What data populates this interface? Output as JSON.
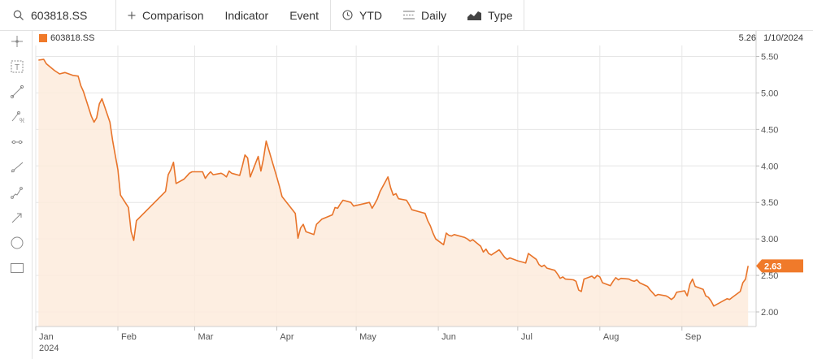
{
  "toolbar": {
    "symbol": "603818.SS",
    "comparison_label": "Comparison",
    "indicator_label": "Indicator",
    "event_label": "Event",
    "range_label": "YTD",
    "interval_label": "Daily",
    "type_label": "Type"
  },
  "legend": {
    "symbol": "603818.SS",
    "color": "#f07a2a"
  },
  "readout": {
    "price": "5.26",
    "date": "1/10/2024"
  },
  "last_price_tag": "2.63",
  "colors": {
    "line": "#e8742a",
    "fill": "#fdebdc",
    "tag": "#f07a2a",
    "grid": "#e6e6e6"
  },
  "tools": [
    "crosshair-icon",
    "text-icon",
    "line-icon",
    "fib-icon",
    "ray-icon",
    "trend-icon",
    "channel-icon",
    "arrow-icon",
    "circle-icon",
    "rectangle-icon"
  ],
  "chart_data": {
    "type": "area",
    "title": "",
    "xlabel": "",
    "ylabel": "",
    "series": [
      {
        "name": "603818.SS",
        "points": [
          [
            "2024-01-02",
            5.45
          ],
          [
            "2024-01-04",
            5.46
          ],
          [
            "2024-01-05",
            5.4
          ],
          [
            "2024-01-08",
            5.31
          ],
          [
            "2024-01-10",
            5.26
          ],
          [
            "2024-01-12",
            5.28
          ],
          [
            "2024-01-15",
            5.24
          ],
          [
            "2024-01-17",
            5.23
          ],
          [
            "2024-01-18",
            5.1
          ],
          [
            "2024-01-19",
            5.02
          ],
          [
            "2024-01-22",
            4.68
          ],
          [
            "2024-01-23",
            4.6
          ],
          [
            "2024-01-24",
            4.66
          ],
          [
            "2024-01-25",
            4.85
          ],
          [
            "2024-01-26",
            4.92
          ],
          [
            "2024-01-29",
            4.6
          ],
          [
            "2024-01-30",
            4.35
          ],
          [
            "2024-01-31",
            4.15
          ],
          [
            "2024-02-01",
            3.95
          ],
          [
            "2024-02-02",
            3.6
          ],
          [
            "2024-02-05",
            3.43
          ],
          [
            "2024-02-06",
            3.1
          ],
          [
            "2024-02-07",
            2.98
          ],
          [
            "2024-02-08",
            3.25
          ],
          [
            "2024-02-19",
            3.65
          ],
          [
            "2024-02-20",
            3.88
          ],
          [
            "2024-02-21",
            3.95
          ],
          [
            "2024-02-22",
            4.05
          ],
          [
            "2024-02-23",
            3.76
          ],
          [
            "2024-02-26",
            3.82
          ],
          [
            "2024-02-27",
            3.86
          ],
          [
            "2024-02-28",
            3.9
          ],
          [
            "2024-02-29",
            3.92
          ],
          [
            "2024-03-04",
            3.92
          ],
          [
            "2024-03-05",
            3.83
          ],
          [
            "2024-03-06",
            3.88
          ],
          [
            "2024-03-07",
            3.92
          ],
          [
            "2024-03-08",
            3.88
          ],
          [
            "2024-03-11",
            3.9
          ],
          [
            "2024-03-12",
            3.88
          ],
          [
            "2024-03-13",
            3.85
          ],
          [
            "2024-03-14",
            3.93
          ],
          [
            "2024-03-15",
            3.9
          ],
          [
            "2024-03-18",
            3.87
          ],
          [
            "2024-03-19",
            4.0
          ],
          [
            "2024-03-20",
            4.15
          ],
          [
            "2024-03-21",
            4.11
          ],
          [
            "2024-03-22",
            3.85
          ],
          [
            "2024-03-25",
            4.13
          ],
          [
            "2024-03-26",
            3.93
          ],
          [
            "2024-03-27",
            4.1
          ],
          [
            "2024-03-28",
            4.34
          ],
          [
            "2024-03-29",
            4.22
          ],
          [
            "2024-04-01",
            3.85
          ],
          [
            "2024-04-02",
            3.72
          ],
          [
            "2024-04-03",
            3.58
          ],
          [
            "2024-04-08",
            3.35
          ],
          [
            "2024-04-09",
            3.01
          ],
          [
            "2024-04-10",
            3.15
          ],
          [
            "2024-04-11",
            3.2
          ],
          [
            "2024-04-12",
            3.1
          ],
          [
            "2024-04-15",
            3.06
          ],
          [
            "2024-04-16",
            3.2
          ],
          [
            "2024-04-18",
            3.27
          ],
          [
            "2024-04-22",
            3.33
          ],
          [
            "2024-04-23",
            3.43
          ],
          [
            "2024-04-24",
            3.42
          ],
          [
            "2024-04-25",
            3.48
          ],
          [
            "2024-04-26",
            3.53
          ],
          [
            "2024-04-29",
            3.5
          ],
          [
            "2024-04-30",
            3.45
          ],
          [
            "2024-05-06",
            3.5
          ],
          [
            "2024-05-07",
            3.42
          ],
          [
            "2024-05-08",
            3.48
          ],
          [
            "2024-05-09",
            3.55
          ],
          [
            "2024-05-10",
            3.65
          ],
          [
            "2024-05-13",
            3.85
          ],
          [
            "2024-05-14",
            3.7
          ],
          [
            "2024-05-15",
            3.6
          ],
          [
            "2024-05-16",
            3.62
          ],
          [
            "2024-05-17",
            3.55
          ],
          [
            "2024-05-20",
            3.53
          ],
          [
            "2024-05-21",
            3.47
          ],
          [
            "2024-05-22",
            3.4
          ],
          [
            "2024-05-24",
            3.38
          ],
          [
            "2024-05-27",
            3.35
          ],
          [
            "2024-05-28",
            3.25
          ],
          [
            "2024-05-29",
            3.18
          ],
          [
            "2024-05-30",
            3.08
          ],
          [
            "2024-05-31",
            3.0
          ],
          [
            "2024-06-03",
            2.92
          ],
          [
            "2024-06-04",
            3.08
          ],
          [
            "2024-06-05",
            3.05
          ],
          [
            "2024-06-06",
            3.04
          ],
          [
            "2024-06-07",
            3.06
          ],
          [
            "2024-06-11",
            3.02
          ],
          [
            "2024-06-12",
            3.0
          ],
          [
            "2024-06-13",
            2.97
          ],
          [
            "2024-06-14",
            2.99
          ],
          [
            "2024-06-17",
            2.9
          ],
          [
            "2024-06-18",
            2.82
          ],
          [
            "2024-06-19",
            2.86
          ],
          [
            "2024-06-20",
            2.8
          ],
          [
            "2024-06-21",
            2.78
          ],
          [
            "2024-06-24",
            2.85
          ],
          [
            "2024-06-25",
            2.8
          ],
          [
            "2024-06-26",
            2.75
          ],
          [
            "2024-06-27",
            2.72
          ],
          [
            "2024-06-28",
            2.74
          ],
          [
            "2024-07-01",
            2.7
          ],
          [
            "2024-07-02",
            2.69
          ],
          [
            "2024-07-03",
            2.68
          ],
          [
            "2024-07-04",
            2.67
          ],
          [
            "2024-07-05",
            2.8
          ],
          [
            "2024-07-08",
            2.72
          ],
          [
            "2024-07-09",
            2.65
          ],
          [
            "2024-07-10",
            2.62
          ],
          [
            "2024-07-11",
            2.64
          ],
          [
            "2024-07-12",
            2.6
          ],
          [
            "2024-07-15",
            2.57
          ],
          [
            "2024-07-16",
            2.52
          ],
          [
            "2024-07-17",
            2.46
          ],
          [
            "2024-07-18",
            2.48
          ],
          [
            "2024-07-19",
            2.45
          ],
          [
            "2024-07-22",
            2.44
          ],
          [
            "2024-07-23",
            2.42
          ],
          [
            "2024-07-24",
            2.3
          ],
          [
            "2024-07-25",
            2.28
          ],
          [
            "2024-07-26",
            2.45
          ],
          [
            "2024-07-29",
            2.49
          ],
          [
            "2024-07-30",
            2.46
          ],
          [
            "2024-07-31",
            2.5
          ],
          [
            "2024-08-01",
            2.48
          ],
          [
            "2024-08-02",
            2.4
          ],
          [
            "2024-08-05",
            2.36
          ],
          [
            "2024-08-06",
            2.42
          ],
          [
            "2024-08-07",
            2.47
          ],
          [
            "2024-08-08",
            2.44
          ],
          [
            "2024-08-09",
            2.46
          ],
          [
            "2024-08-12",
            2.45
          ],
          [
            "2024-08-13",
            2.43
          ],
          [
            "2024-08-14",
            2.42
          ],
          [
            "2024-08-15",
            2.44
          ],
          [
            "2024-08-16",
            2.4
          ],
          [
            "2024-08-19",
            2.35
          ],
          [
            "2024-08-20",
            2.3
          ],
          [
            "2024-08-21",
            2.26
          ],
          [
            "2024-08-22",
            2.22
          ],
          [
            "2024-08-23",
            2.24
          ],
          [
            "2024-08-26",
            2.22
          ],
          [
            "2024-08-27",
            2.2
          ],
          [
            "2024-08-28",
            2.17
          ],
          [
            "2024-08-29",
            2.2
          ],
          [
            "2024-08-30",
            2.27
          ],
          [
            "2024-09-02",
            2.29
          ],
          [
            "2024-09-03",
            2.22
          ],
          [
            "2024-09-04",
            2.38
          ],
          [
            "2024-09-05",
            2.45
          ],
          [
            "2024-09-06",
            2.35
          ],
          [
            "2024-09-09",
            2.31
          ],
          [
            "2024-09-10",
            2.22
          ],
          [
            "2024-09-11",
            2.2
          ],
          [
            "2024-09-12",
            2.15
          ],
          [
            "2024-09-13",
            2.08
          ],
          [
            "2024-09-18",
            2.18
          ],
          [
            "2024-09-19",
            2.17
          ],
          [
            "2024-09-20",
            2.2
          ],
          [
            "2024-09-23",
            2.28
          ],
          [
            "2024-09-24",
            2.4
          ],
          [
            "2024-09-25",
            2.45
          ],
          [
            "2024-09-26",
            2.63
          ]
        ]
      }
    ],
    "x_ticks": [
      {
        "label": "Jan",
        "date": "2024-01-01",
        "sub": "2024"
      },
      {
        "label": "Feb",
        "date": "2024-02-01"
      },
      {
        "label": "Mar",
        "date": "2024-03-01"
      },
      {
        "label": "Apr",
        "date": "2024-04-01"
      },
      {
        "label": "May",
        "date": "2024-05-01"
      },
      {
        "label": "Jun",
        "date": "2024-06-01"
      },
      {
        "label": "Jul",
        "date": "2024-07-01"
      },
      {
        "label": "Aug",
        "date": "2024-08-01"
      },
      {
        "label": "Sep",
        "date": "2024-09-01"
      }
    ],
    "xlim": [
      "2024-01-01",
      "2024-09-29"
    ],
    "y_ticks": [
      "2.00",
      "2.50",
      "3.00",
      "3.50",
      "4.00",
      "4.50",
      "5.00",
      "5.50"
    ],
    "ylim": [
      1.8,
      5.65
    ],
    "grid": true,
    "legend_position": "top-left"
  }
}
